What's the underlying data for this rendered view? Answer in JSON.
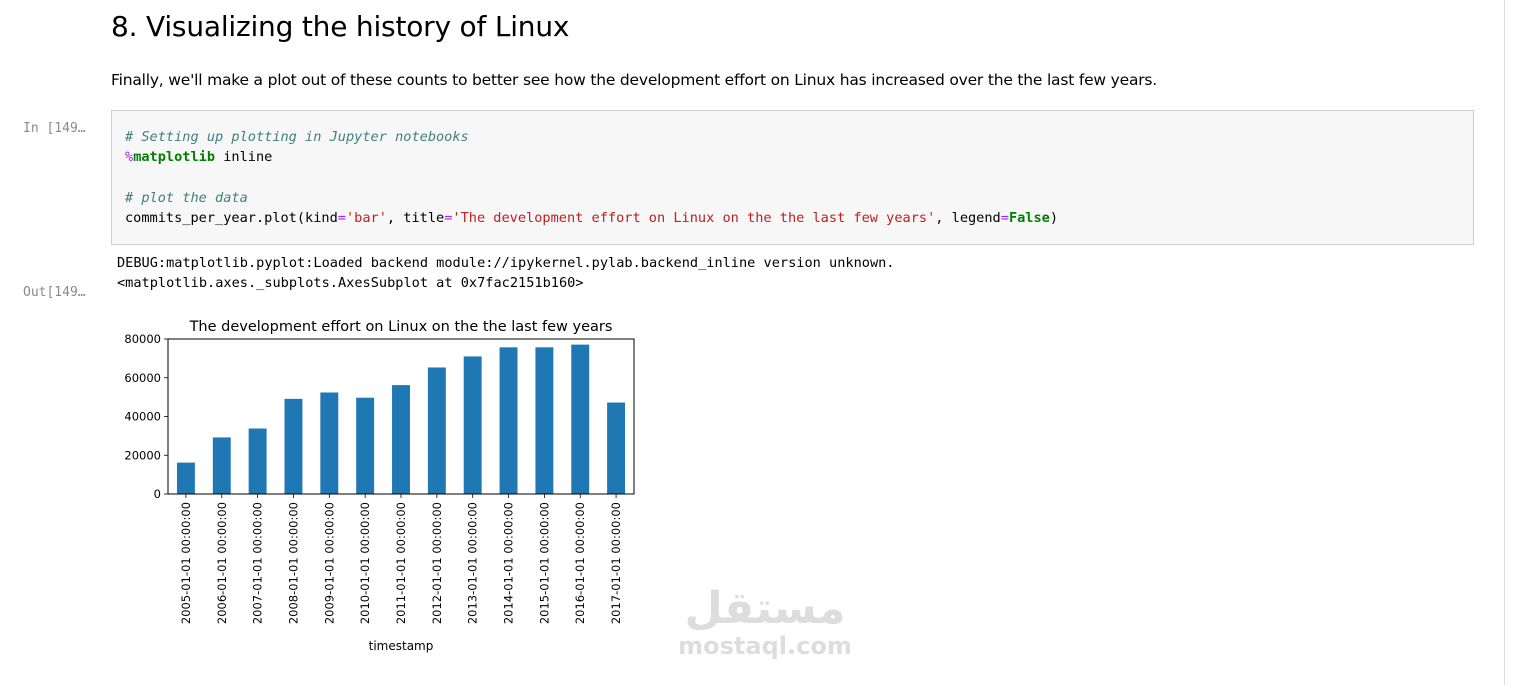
{
  "heading": "8. Visualizing the history of Linux",
  "intro": "Finally, we'll make a plot out of these counts to better see how the development effort on Linux has increased over the the last few years.",
  "input_prompt": "In [149…",
  "output_prompt": "Out[149…",
  "code": {
    "line1_comment": "# Setting up plotting in Jupyter notebooks",
    "line2_magic": "%",
    "line2_magic_name": "matplotlib",
    "line2_rest": " inline",
    "line4_comment": "# plot the data",
    "line5_a": "commits_per_year.plot(kind",
    "line5_eq1": "=",
    "line5_str1": "'bar'",
    "line5_b": ", title",
    "line5_eq2": "=",
    "line5_str2": "'The development effort on Linux on the the last few years'",
    "line5_c": ", legend",
    "line5_eq3": "=",
    "line5_kw": "False",
    "line5_d": ")"
  },
  "output": {
    "debug": "DEBUG:matplotlib.pyplot:Loaded backend module://ipykernel.pylab.backend_inline version unknown.",
    "repr": "<matplotlib.axes._subplots.AxesSubplot at 0x7fac2151b160>"
  },
  "watermark": {
    "arabic": "مستقل",
    "latin": "mostaql.com"
  },
  "chart_data": {
    "type": "bar",
    "title": "The development effort on Linux on the the last few years",
    "xlabel": "timestamp",
    "ylabel": "",
    "categories": [
      "2005-01-01 00:00:00",
      "2006-01-01 00:00:00",
      "2007-01-01 00:00:00",
      "2008-01-01 00:00:00",
      "2009-01-01 00:00:00",
      "2010-01-01 00:00:00",
      "2011-01-01 00:00:00",
      "2012-01-01 00:00:00",
      "2013-01-01 00:00:00",
      "2014-01-01 00:00:00",
      "2015-01-01 00:00:00",
      "2016-01-01 00:00:00",
      "2017-01-01 00:00:00"
    ],
    "values": [
      16200,
      29200,
      33800,
      49100,
      52400,
      49700,
      56200,
      65300,
      71000,
      75700,
      75700,
      77100,
      47200
    ],
    "ylim": [
      0,
      80000
    ],
    "yticks": [
      0,
      20000,
      40000,
      60000,
      80000
    ],
    "ytick_labels": [
      "0",
      "20000",
      "40000",
      "60000",
      "80000"
    ],
    "bar_color": "#1f77b4",
    "grid": false,
    "legend": false
  }
}
